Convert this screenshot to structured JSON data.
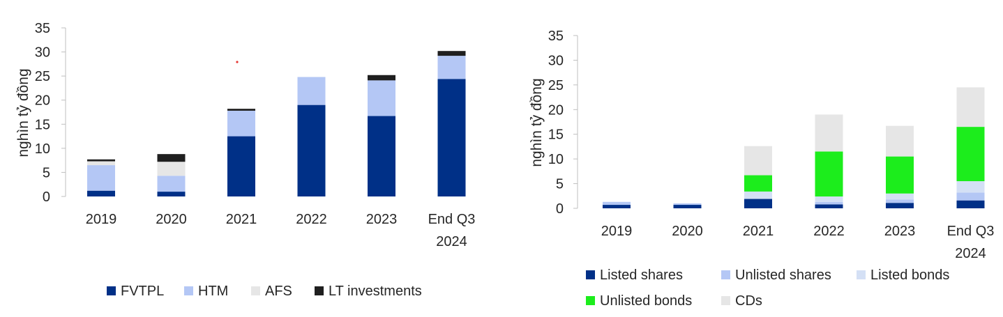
{
  "chart_data": [
    {
      "type": "bar",
      "stacked": true,
      "ylabel": "nghìn tỷ đồng",
      "ylim": [
        0,
        35
      ],
      "yticks": [
        0,
        5,
        10,
        15,
        20,
        25,
        30,
        35
      ],
      "categories": [
        [
          "2019"
        ],
        [
          "2020"
        ],
        [
          "2021"
        ],
        [
          "2022"
        ],
        [
          "2023"
        ],
        [
          "End Q3",
          "2024"
        ]
      ],
      "series": [
        {
          "name": "FVTPL",
          "color": "#003087",
          "values": [
            1.2,
            1.0,
            12.5,
            19.0,
            16.7,
            24.4
          ]
        },
        {
          "name": "HTM",
          "color": "#b4c7f5",
          "values": [
            5.3,
            3.3,
            5.3,
            5.8,
            7.4,
            4.8
          ]
        },
        {
          "name": "AFS",
          "color": "#e6e6e6",
          "values": [
            0.8,
            2.9,
            0.0,
            0.0,
            0.0,
            0.0
          ]
        },
        {
          "name": "LT investments",
          "color": "#1f1f1f",
          "values": [
            0.4,
            1.6,
            0.4,
            0.0,
            1.1,
            1.0
          ]
        }
      ],
      "legend": "bottom",
      "grid": false
    },
    {
      "type": "bar",
      "stacked": true,
      "ylabel": "nghìn tỷ đồng",
      "ylim": [
        0,
        35
      ],
      "yticks": [
        0,
        5,
        10,
        15,
        20,
        25,
        30,
        35
      ],
      "categories": [
        [
          "2019"
        ],
        [
          "2020"
        ],
        [
          "2021"
        ],
        [
          "2022"
        ],
        [
          "2023"
        ],
        [
          "End Q3",
          "2024"
        ]
      ],
      "series": [
        {
          "name": "Listed shares",
          "color": "#003087",
          "values": [
            0.7,
            0.7,
            1.9,
            0.8,
            1.1,
            1.6
          ]
        },
        {
          "name": "Unlisted shares",
          "color": "#b4c7f5",
          "values": [
            0.6,
            0.3,
            0.0,
            0.5,
            0.7,
            1.6
          ]
        },
        {
          "name": "Listed bonds",
          "color": "#d4e0f5",
          "values": [
            0.0,
            0.0,
            1.5,
            1.1,
            1.2,
            2.3
          ]
        },
        {
          "name": "Unlisted bonds",
          "color": "#1ced1c",
          "values": [
            0.0,
            0.0,
            3.3,
            9.1,
            7.5,
            11.0
          ]
        },
        {
          "name": "CDs",
          "color": "#e6e6e6",
          "values": [
            0.0,
            0.0,
            5.9,
            7.5,
            6.2,
            8.0
          ]
        }
      ],
      "legend": "bottom",
      "grid": false
    }
  ]
}
